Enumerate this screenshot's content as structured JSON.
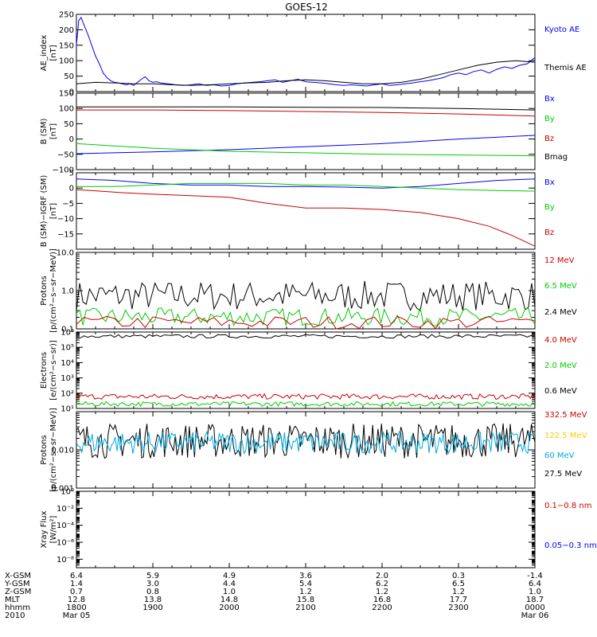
{
  "title": "GOES-12",
  "x_axis": {
    "row_labels": [
      "X-GSM",
      "Y-GSM",
      "Z-GSM",
      "MLT",
      "hhmm",
      "2010"
    ],
    "columns": [
      {
        "xgsm": "6.4",
        "ygsm": "1.4",
        "zgsm": "0.7",
        "mlt": "12.8",
        "hhmm": "1800",
        "date": "Mar 05"
      },
      {
        "xgsm": "5.9",
        "ygsm": "3.0",
        "zgsm": "0.8",
        "mlt": "13.8",
        "hhmm": "1900",
        "date": ""
      },
      {
        "xgsm": "4.9",
        "ygsm": "4.4",
        "zgsm": "1.0",
        "mlt": "14.8",
        "hhmm": "2000",
        "date": ""
      },
      {
        "xgsm": "3.6",
        "ygsm": "5.4",
        "zgsm": "1.2",
        "mlt": "15.8",
        "hhmm": "2100",
        "date": ""
      },
      {
        "xgsm": "2.0",
        "ygsm": "6.2",
        "zgsm": "1.2",
        "mlt": "16.8",
        "hhmm": "2200",
        "date": ""
      },
      {
        "xgsm": "0.3",
        "ygsm": "6.5",
        "zgsm": "1.2",
        "mlt": "17.7",
        "hhmm": "2300",
        "date": ""
      },
      {
        "xgsm": "-1.4",
        "ygsm": "6.4",
        "zgsm": "1.0",
        "mlt": "18.7",
        "hhmm": "0000",
        "date": "Mar 06"
      }
    ]
  },
  "chart_data": [
    {
      "type": "line",
      "ylabel": [
        "AE_index",
        "[nT]"
      ],
      "ylim": [
        0,
        250
      ],
      "scale": "linear",
      "ticks": [
        0,
        50,
        100,
        150,
        200,
        250
      ],
      "tick_labels": [
        "0",
        "50",
        "100",
        "150",
        "200",
        "250"
      ],
      "legend": [
        {
          "name": "Kyoto AE",
          "color": "#0000ff"
        },
        {
          "name": "Themis AE",
          "color": "#000000"
        }
      ],
      "series": [
        {
          "name": "Kyoto AE",
          "color": "#0000ff",
          "t": [
            0,
            0.03,
            0.06,
            0.1,
            0.15,
            0.2,
            0.25,
            0.3,
            0.35,
            0.4,
            0.45,
            0.5,
            0.55,
            0.6,
            0.65,
            0.7,
            0.75,
            0.8,
            0.85,
            0.9,
            0.95,
            1.0,
            1.05,
            1.1,
            1.2,
            1.3,
            1.4,
            1.5,
            1.6,
            1.7,
            1.8,
            1.9,
            2.0,
            2.1,
            2.2,
            2.3,
            2.4,
            2.5,
            2.6,
            2.7,
            2.8,
            2.9,
            3.0,
            3.1,
            3.2,
            3.3,
            3.4,
            3.5,
            3.6,
            3.7,
            3.8,
            3.9,
            4.0,
            4.1,
            4.2,
            4.3,
            4.4,
            4.5,
            4.6,
            4.7,
            4.8,
            4.9,
            5.0,
            5.1,
            5.2,
            5.3,
            5.4,
            5.5,
            5.6,
            5.7,
            5.8,
            5.9,
            6.0
          ],
          "y": [
            150,
            230,
            240,
            215,
            185,
            150,
            115,
            90,
            60,
            45,
            35,
            30,
            28,
            25,
            22,
            25,
            20,
            30,
            40,
            48,
            35,
            30,
            32,
            28,
            25,
            22,
            20,
            22,
            25,
            20,
            22,
            18,
            20,
            25,
            28,
            30,
            32,
            35,
            38,
            30,
            35,
            40,
            32,
            30,
            28,
            25,
            22,
            20,
            22,
            20,
            18,
            22,
            25,
            20,
            22,
            25,
            28,
            32,
            35,
            40,
            45,
            55,
            60,
            55,
            65,
            70,
            60,
            72,
            80,
            75,
            85,
            90,
            110
          ]
        },
        {
          "name": "Themis AE",
          "color": "#000000",
          "t": [
            0,
            0.25,
            0.5,
            0.75,
            1.0,
            1.25,
            1.5,
            1.75,
            2.0,
            2.25,
            2.5,
            2.75,
            3.0,
            3.25,
            3.5,
            3.75,
            4.0,
            4.25,
            4.5,
            4.75,
            5.0,
            5.25,
            5.5,
            5.75,
            6.0
          ],
          "y": [
            25,
            30,
            28,
            25,
            25,
            22,
            20,
            22,
            25,
            28,
            30,
            35,
            38,
            35,
            30,
            25,
            25,
            30,
            40,
            55,
            70,
            85,
            95,
            100,
            95
          ]
        }
      ]
    },
    {
      "type": "line",
      "ylabel": [
        "B (SM)",
        "[nT]"
      ],
      "ylim": [
        -100,
        150
      ],
      "scale": "linear",
      "ticks": [
        -100,
        -50,
        0,
        50,
        100,
        150
      ],
      "tick_labels": [
        "−100",
        "−50",
        "0",
        "50",
        "100",
        "150"
      ],
      "legend": [
        {
          "name": "Bx",
          "color": "#0000ff"
        },
        {
          "name": "By",
          "color": "#00cc00"
        },
        {
          "name": "Bz",
          "color": "#cc0000"
        },
        {
          "name": "Bmag",
          "color": "#000000"
        }
      ],
      "series": [
        {
          "name": "Bx",
          "color": "#0000ff",
          "t": [
            0,
            1,
            2,
            3,
            4,
            5,
            6
          ],
          "y": [
            -48,
            -42,
            -35,
            -25,
            -15,
            0,
            12
          ]
        },
        {
          "name": "By",
          "color": "#00cc00",
          "t": [
            0,
            1,
            2,
            3,
            4,
            5,
            6
          ],
          "y": [
            -15,
            -30,
            -40,
            -45,
            -50,
            -52,
            -55
          ]
        },
        {
          "name": "Bz",
          "color": "#cc0000",
          "t": [
            0,
            1,
            2,
            3,
            4,
            5,
            6
          ],
          "y": [
            95,
            95,
            93,
            90,
            87,
            82,
            75
          ]
        },
        {
          "name": "Bmag",
          "color": "#000000",
          "t": [
            0,
            1,
            2,
            3,
            4,
            5,
            6
          ],
          "y": [
            105,
            105,
            105,
            104,
            103,
            100,
            95
          ]
        }
      ]
    },
    {
      "type": "line",
      "ylabel": [
        "B (SM)−IGRF (SM)",
        "[nT]"
      ],
      "ylim": [
        -20,
        5
      ],
      "scale": "linear",
      "ticks": [
        -15,
        -10,
        -5,
        0,
        5
      ],
      "tick_labels": [
        "−15",
        "−10",
        "−5",
        "0",
        "5"
      ],
      "legend": [
        {
          "name": "Bx",
          "color": "#0000ff"
        },
        {
          "name": "By",
          "color": "#00cc00"
        },
        {
          "name": "Bz",
          "color": "#cc0000"
        }
      ],
      "series": [
        {
          "name": "Bx",
          "color": "#0000ff",
          "t": [
            0,
            0.5,
            1,
            1.5,
            2,
            2.5,
            3,
            3.5,
            4,
            4.5,
            5,
            5.5,
            6
          ],
          "y": [
            3,
            2.5,
            1.5,
            1,
            1,
            0.5,
            0.5,
            0.3,
            0,
            0.5,
            1.5,
            2.5,
            3
          ]
        },
        {
          "name": "By",
          "color": "#00cc00",
          "t": [
            0,
            0.5,
            1,
            1.5,
            2,
            2.5,
            3,
            3.5,
            4,
            4.5,
            5,
            5.5,
            6
          ],
          "y": [
            0.5,
            0.5,
            1,
            1.5,
            1.5,
            1.5,
            1,
            1,
            0.5,
            0,
            -0.5,
            -0.8,
            -1
          ]
        },
        {
          "name": "Bz",
          "color": "#cc0000",
          "t": [
            0,
            0.3,
            0.6,
            1,
            1.5,
            2,
            2.5,
            3,
            3.5,
            4,
            4.5,
            5,
            5.4,
            5.7,
            6
          ],
          "y": [
            -0.5,
            -1,
            -1.5,
            -2,
            -2.5,
            -3,
            -5,
            -6.5,
            -6.5,
            -7,
            -8,
            -10,
            -12.5,
            -15.5,
            -19
          ]
        }
      ]
    },
    {
      "type": "line",
      "ylabel": [
        "Protons",
        "[p/(cm²−s−sr−MeV)]"
      ],
      "ylim": [
        0.1,
        10
      ],
      "scale": "log",
      "ticks": [
        0.1,
        1,
        10
      ],
      "tick_labels": [
        "0.1",
        "1.0",
        "10.0"
      ],
      "legend": [
        {
          "name": "12 MeV",
          "color": "#cc0000"
        },
        {
          "name": "6.5 MeV",
          "color": "#00cc00"
        },
        {
          "name": "2.4 MeV",
          "color": "#000000"
        }
      ],
      "series": [
        {
          "name": "2.4 MeV",
          "color": "#000000",
          "noise": {
            "lo": 0.3,
            "hi": 1.8,
            "n": 140
          }
        },
        {
          "name": "6.5 MeV",
          "color": "#00cc00",
          "noise": {
            "lo": 0.12,
            "hi": 0.35,
            "n": 140
          }
        },
        {
          "name": "12 MeV",
          "color": "#cc0000",
          "noise": {
            "lo": 0.1,
            "hi": 0.22,
            "n": 60
          }
        }
      ]
    },
    {
      "type": "line",
      "ylabel": [
        "Electrons",
        "[e/(cm²−s−sr)]"
      ],
      "ylim": [
        10,
        1000000
      ],
      "scale": "log",
      "ticks": [
        10,
        100,
        1000,
        10000,
        100000,
        1000000
      ],
      "tick_labels": [
        "10¹",
        "10²",
        "10³",
        "10⁴",
        "10⁵",
        "10⁶"
      ],
      "legend": [
        {
          "name": "4.0 MeV",
          "color": "#cc0000"
        },
        {
          "name": "2.0 MeV",
          "color": "#00cc00"
        },
        {
          "name": "0.6 MeV",
          "color": "#000000"
        }
      ],
      "series": [
        {
          "name": "0.6 MeV",
          "color": "#000000",
          "noise": {
            "lo": 400000,
            "hi": 700000,
            "n": 120
          }
        },
        {
          "name": "4.0 MeV",
          "color": "#cc0000",
          "noise": {
            "lo": 40,
            "hi": 90,
            "n": 200
          }
        },
        {
          "name": "2.0 MeV",
          "color": "#00cc00",
          "noise": {
            "lo": 14,
            "hi": 28,
            "n": 200
          }
        }
      ]
    },
    {
      "type": "line",
      "ylabel": [
        "Protons",
        "[p/(cm²−s−sr−MeV)]"
      ],
      "ylim": [
        0.001,
        0.1
      ],
      "scale": "log",
      "ticks": [
        0.001,
        0.01
      ],
      "tick_labels": [
        "0.001",
        "0.010"
      ],
      "legend": [
        {
          "name": "332.5 MeV",
          "color": "#cc0000"
        },
        {
          "name": "122.5 MeV",
          "color": "#ffcc00"
        },
        {
          "name": "60 MeV",
          "color": "#00aadd"
        },
        {
          "name": "27.5 MeV",
          "color": "#000000"
        }
      ],
      "series": [
        {
          "name": "27.5 MeV",
          "color": "#000000",
          "noise": {
            "lo": 0.006,
            "hi": 0.05,
            "n": 260
          }
        },
        {
          "name": "60 MeV",
          "color": "#00aadd",
          "noise": {
            "lo": 0.008,
            "hi": 0.03,
            "n": 260
          }
        }
      ]
    },
    {
      "type": "line",
      "ylabel": [
        "Xray  Flux",
        "[W/m²]"
      ],
      "ylim": [
        1e-09,
        1
      ],
      "scale": "log",
      "ticks": [
        1e-08,
        1e-06,
        0.0001,
        0.01,
        1
      ],
      "tick_labels": [
        "10⁻⁸",
        "10⁻⁶",
        "10⁻⁴",
        "10⁻²",
        "10⁰"
      ],
      "legend": [
        {
          "name": "0.1−0.8 nm",
          "color": "#cc0000"
        },
        {
          "name": "0.05−0.3 nm",
          "color": "#0000ff"
        }
      ],
      "series": []
    }
  ]
}
